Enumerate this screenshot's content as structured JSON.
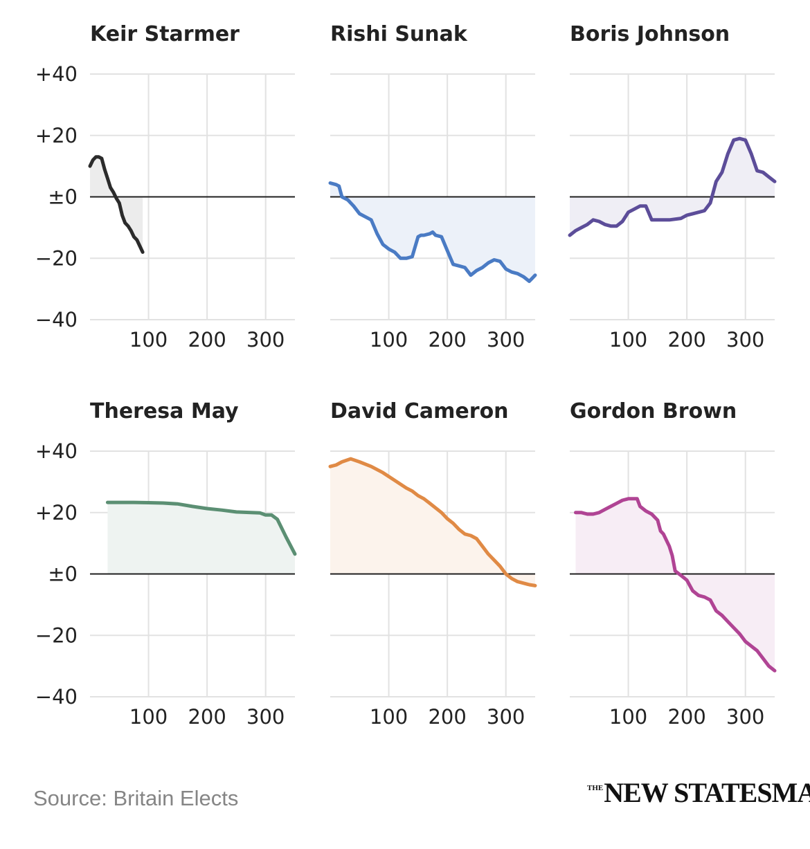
{
  "footer": {
    "source": "Source: Britain Elects",
    "brand_small": "THE",
    "brand_main": "NEW STATESMAN"
  },
  "chart_data": {
    "type": "small-multiples-line",
    "title": "",
    "xticks": [
      100,
      200,
      300
    ],
    "xlim": [
      0,
      350
    ],
    "yticks": [
      40,
      20,
      0,
      -20,
      -40
    ],
    "ytick_labels": [
      "+40",
      "+20",
      "±0",
      "−20",
      "−40"
    ],
    "ylim": [
      -40,
      40
    ],
    "panels": [
      {
        "name": "Keir Starmer",
        "color": "#2b2b2b",
        "fill": "#ececec",
        "x": [
          0,
          5,
          10,
          15,
          20,
          25,
          30,
          35,
          40,
          45,
          50,
          55,
          60,
          65,
          70,
          75,
          80,
          85,
          90
        ],
        "y": [
          10,
          12,
          13,
          13,
          12.5,
          9,
          6,
          3,
          1.5,
          -0.5,
          -2,
          -6,
          -8.5,
          -9.5,
          -11,
          -13,
          -14,
          -16,
          -18
        ]
      },
      {
        "name": "Rishi Sunak",
        "color": "#4a7bc4",
        "fill": "#ecf1f9",
        "x": [
          0,
          10,
          15,
          20,
          30,
          40,
          50,
          60,
          70,
          80,
          90,
          100,
          110,
          120,
          130,
          140,
          150,
          155,
          160,
          170,
          175,
          180,
          190,
          200,
          210,
          220,
          230,
          240,
          250,
          260,
          270,
          280,
          290,
          300,
          310,
          320,
          330,
          340,
          345,
          350
        ],
        "y": [
          4.5,
          4,
          3.5,
          0,
          -1,
          -3,
          -5.5,
          -6.5,
          -7.5,
          -12,
          -15.5,
          -17,
          -18,
          -20,
          -20,
          -19.5,
          -13,
          -12.5,
          -12.5,
          -12,
          -11.5,
          -12.5,
          -13,
          -17.5,
          -22,
          -22.5,
          -23,
          -25.5,
          -24,
          -23,
          -21.5,
          -20.5,
          -21,
          -23.5,
          -24.5,
          -25,
          -26,
          -27.5,
          -26.5,
          -25.5
        ]
      },
      {
        "name": "Boris Johnson",
        "color": "#5c4d99",
        "fill": "#efeef5",
        "x": [
          0,
          10,
          20,
          30,
          40,
          50,
          60,
          70,
          80,
          90,
          100,
          110,
          120,
          130,
          140,
          150,
          170,
          190,
          200,
          210,
          230,
          240,
          250,
          260,
          270,
          280,
          290,
          300,
          310,
          320,
          330,
          340,
          350
        ],
        "y": [
          -12.5,
          -11,
          -10,
          -9,
          -7.5,
          -8,
          -9,
          -9.5,
          -9.5,
          -8,
          -5,
          -4,
          -3,
          -3,
          -7.5,
          -7.5,
          -7.5,
          -7,
          -6,
          -5.5,
          -4.5,
          -2,
          5,
          8,
          14,
          18.5,
          19,
          18.5,
          14,
          8.5,
          8,
          6.5,
          5
        ]
      },
      {
        "name": "Theresa May",
        "color": "#5b8f73",
        "fill": "#eef3f1",
        "x": [
          30,
          50,
          75,
          100,
          125,
          150,
          175,
          200,
          225,
          250,
          275,
          290,
          300,
          310,
          320,
          335,
          350
        ],
        "y": [
          23.3,
          23.3,
          23.3,
          23.2,
          23.1,
          22.8,
          22,
          21.3,
          20.8,
          20.2,
          20,
          19.9,
          19.2,
          19.2,
          17.8,
          12,
          6.5
        ]
      },
      {
        "name": "David Cameron",
        "color": "#e08a45",
        "fill": "#fcf3ec",
        "x": [
          0,
          10,
          20,
          35,
          50,
          70,
          90,
          110,
          130,
          140,
          150,
          160,
          170,
          180,
          190,
          200,
          210,
          220,
          230,
          240,
          250,
          260,
          270,
          280,
          290,
          300,
          310,
          320,
          330,
          340,
          350
        ],
        "y": [
          35,
          35.5,
          36.5,
          37.5,
          36.5,
          35,
          33,
          30.5,
          28,
          27,
          25.5,
          24.5,
          23,
          21.5,
          20,
          18,
          16.5,
          14.5,
          13,
          12.5,
          11.5,
          9,
          6.5,
          4.5,
          2.5,
          0,
          -1.5,
          -2.5,
          -3,
          -3.5,
          -3.8
        ]
      },
      {
        "name": "Gordon Brown",
        "color": "#b04494",
        "fill": "#f7edf5",
        "x": [
          10,
          20,
          30,
          40,
          50,
          60,
          70,
          80,
          90,
          100,
          110,
          115,
          120,
          130,
          140,
          150,
          155,
          160,
          170,
          175,
          180,
          190,
          200,
          210,
          220,
          230,
          240,
          250,
          260,
          270,
          280,
          290,
          300,
          310,
          320,
          330,
          340,
          350
        ],
        "y": [
          20,
          20,
          19.5,
          19.5,
          20,
          21,
          22,
          23,
          24,
          24.5,
          24.5,
          24.5,
          22,
          20.5,
          19.5,
          17.5,
          14,
          13,
          9,
          6,
          1,
          -0.5,
          -2,
          -5.5,
          -7,
          -7.5,
          -8.5,
          -12,
          -13.5,
          -15.5,
          -17.5,
          -19.5,
          -22,
          -23.5,
          -25,
          -27.5,
          -30,
          -31.5
        ]
      }
    ]
  }
}
